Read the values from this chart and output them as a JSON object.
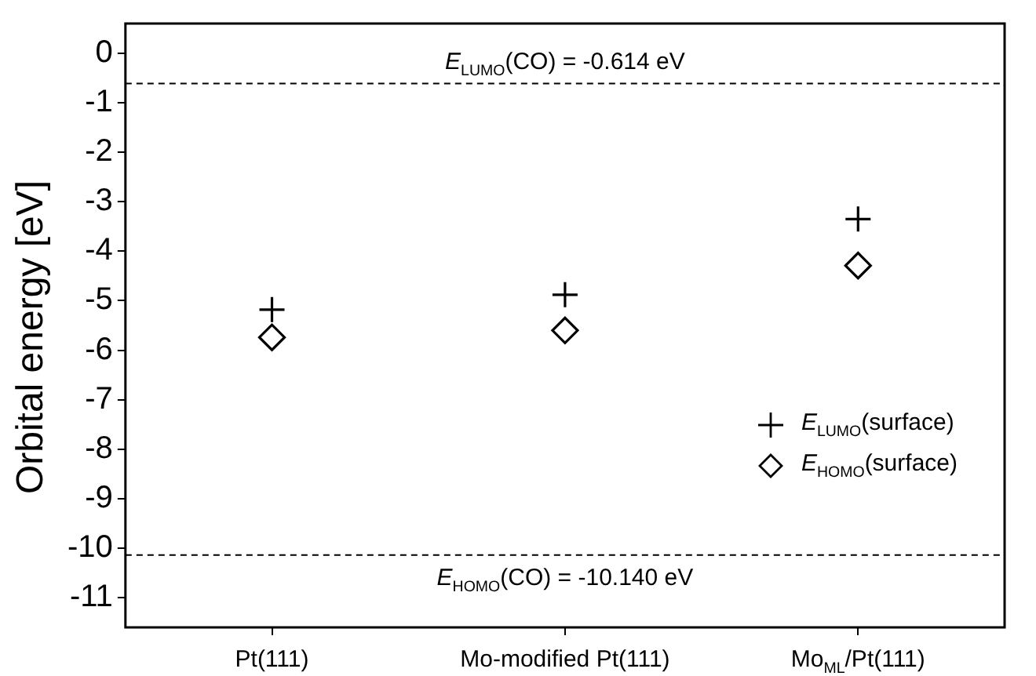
{
  "chart_data": {
    "type": "scatter",
    "ylabel": "Orbital energy [eV]",
    "categories": [
      "Pt(111)",
      "Mo-modified Pt(111)",
      "Mo$_{ML}$/Pt(111)"
    ],
    "series": [
      {
        "name": "E$_{LUMO}$(surface)",
        "color": "#000000",
        "marker": "cross",
        "values": [
          -5.18,
          -4.88,
          -3.35
        ]
      },
      {
        "name": "E$_{HOMO}$(surface)",
        "color": "#000000",
        "marker": "diamond",
        "values": [
          -5.74,
          -5.6,
          -4.29
        ]
      }
    ],
    "ylim": [
      -11.6,
      0.6
    ],
    "yticks": [
      0,
      -1,
      -2,
      -3,
      -4,
      -5,
      -6,
      -7,
      -8,
      -9,
      -10,
      -11
    ],
    "ref_lines": [
      {
        "axis": "y",
        "value": -0.614,
        "label": "E$_{LUMO}$(CO) = -0.614 eV",
        "color": "#000000",
        "line_style": "dashed"
      },
      {
        "axis": "y",
        "value": -10.14,
        "label": "E$_{HOMO}$(CO) = -10.140 eV",
        "color": "#000000",
        "line_style": "dashed"
      }
    ],
    "grid": false,
    "legend": "bottom right"
  }
}
